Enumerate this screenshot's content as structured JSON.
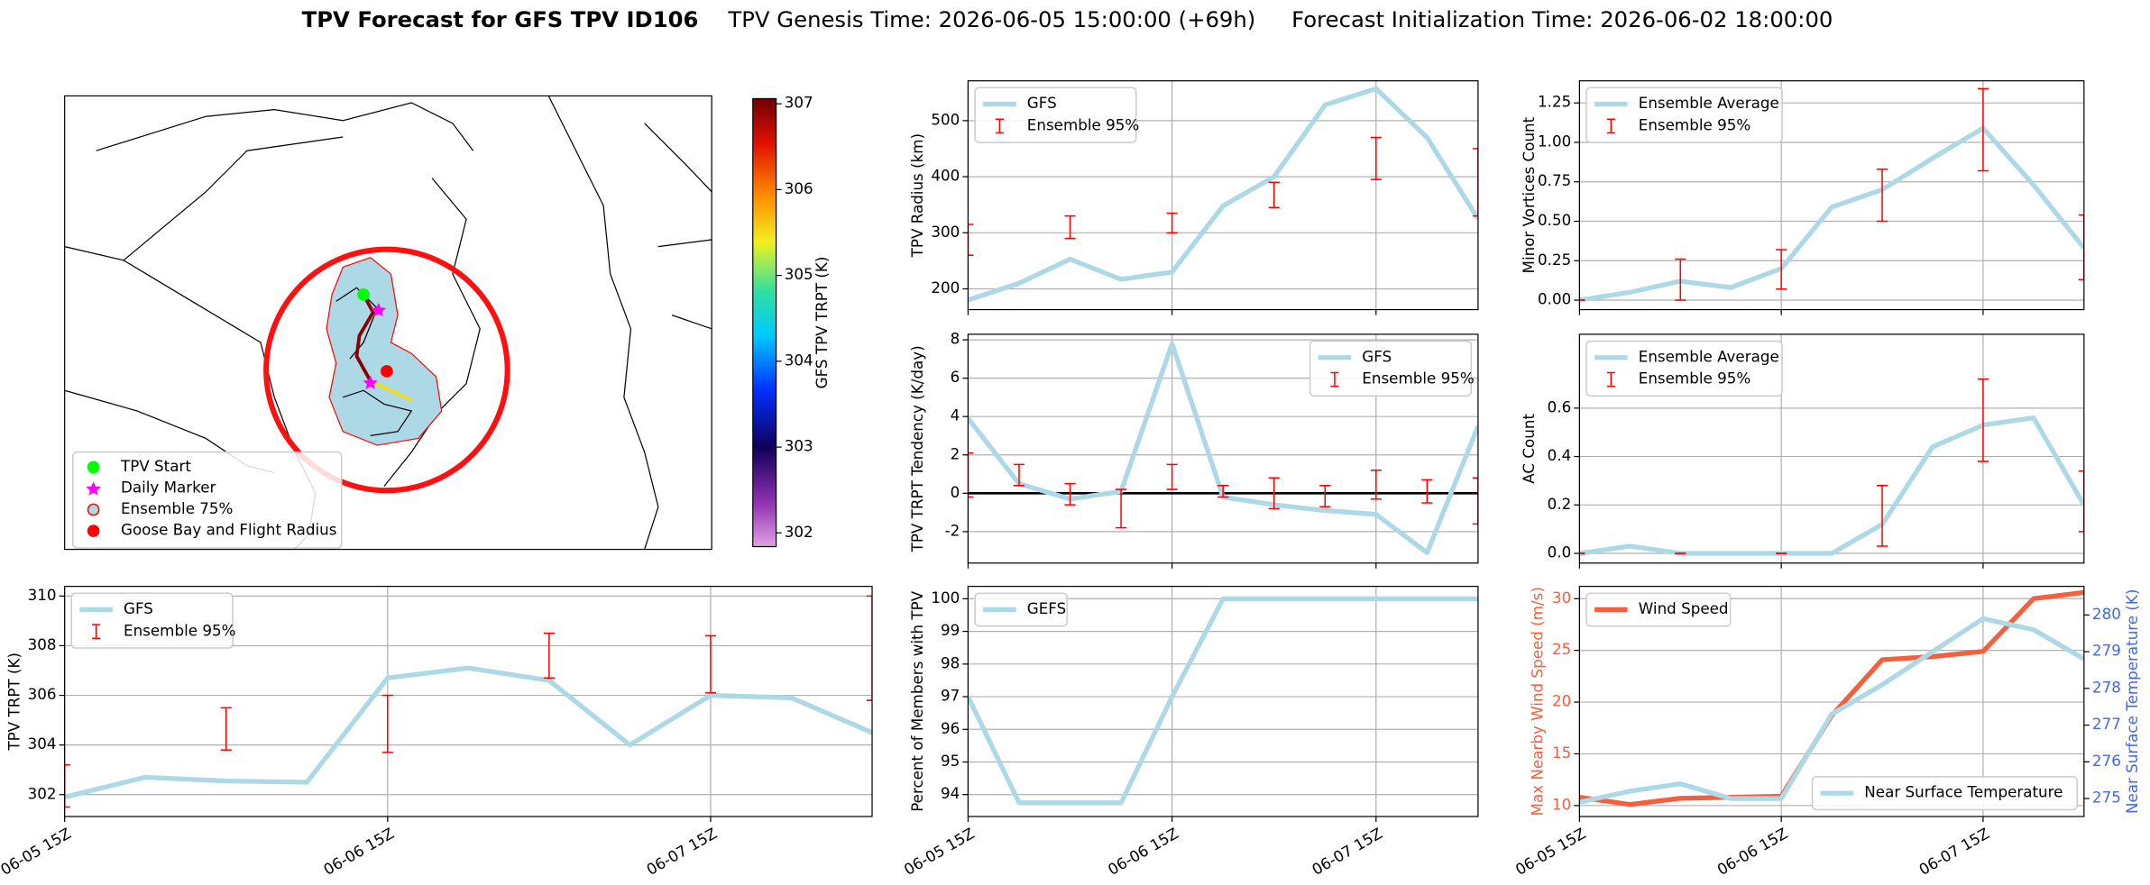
{
  "title": "TPV Forecast for GFS TPV ID106",
  "genesis": "TPV Genesis Time: 2026-06-05 15:00:00 (+69h)",
  "initialization": "Forecast Initialization Time: 2026-06-02 18:00:00",
  "chart_data": [
    {
      "type": "map",
      "legend": [
        {
          "label": "TPV Start",
          "color": "#00ff00",
          "marker": "circle"
        },
        {
          "label": "Daily Marker",
          "color": "#ff00ff",
          "marker": "star"
        },
        {
          "label": "Ensemble 75%",
          "color": "#add8e6",
          "marker": "ring"
        },
        {
          "label": "Goose Bay and Flight Radius",
          "color": "#ff0000",
          "marker": "circle"
        }
      ],
      "colorbar": {
        "label": "GFS TPV TRPT (K)",
        "ylim": [
          301.84,
          307.06
        ],
        "yticks": [
          302,
          303,
          304,
          305,
          306,
          307
        ]
      }
    },
    {
      "type": "line",
      "ylabel": "TPV Radius (km)",
      "x": [
        0,
        6,
        12,
        18,
        24,
        30,
        36,
        42,
        48,
        54,
        60
      ],
      "xlim": [
        0,
        60
      ],
      "xticks": [
        {
          "value": 0,
          "label": "06-05 15Z"
        },
        {
          "value": 24,
          "label": "06-06 15Z"
        },
        {
          "value": 48,
          "label": "06-07 15Z"
        }
      ],
      "ylim": [
        163,
        571
      ],
      "yticks": [
        200,
        300,
        400,
        500
      ],
      "grid": true,
      "legend_loc": "upper left",
      "series": [
        {
          "name": "GFS",
          "color": "#add8e6",
          "values": [
            180,
            210,
            253,
            217,
            230,
            348,
            400,
            528,
            557,
            470,
            325
          ]
        }
      ],
      "errorbars": {
        "name": "Ensemble 95%",
        "color": "#ff0000",
        "x": [
          0,
          12,
          24,
          36,
          48,
          60
        ],
        "low": [
          260,
          290,
          300,
          345,
          395,
          330
        ],
        "high": [
          315,
          330,
          335,
          390,
          470,
          450
        ]
      }
    },
    {
      "type": "line",
      "ylabel": "Minor Vortices Count",
      "x": [
        0,
        6,
        12,
        18,
        24,
        30,
        36,
        42,
        48,
        54,
        60
      ],
      "xlim": [
        0,
        60
      ],
      "xticks": [
        {
          "value": 0,
          "label": "06-05 15Z"
        },
        {
          "value": 24,
          "label": "06-06 15Z"
        },
        {
          "value": 48,
          "label": "06-07 15Z"
        }
      ],
      "ylim": [
        -0.06,
        1.39
      ],
      "yticks": [
        {
          "value": 0,
          "label": "0.00"
        },
        {
          "value": 0.25,
          "label": "0.25"
        },
        {
          "value": 0.5,
          "label": "0.50"
        },
        {
          "value": 0.75,
          "label": "0.75"
        },
        {
          "value": 1,
          "label": "1.00"
        },
        {
          "value": 1.25,
          "label": "1.25"
        }
      ],
      "grid": true,
      "legend_loc": "upper left",
      "series": [
        {
          "name": "Ensemble Average",
          "color": "#add8e6",
          "values": [
            0,
            0.05,
            0.12,
            0.08,
            0.2,
            0.59,
            0.7,
            0.9,
            1.09,
            0.73,
            0.33
          ]
        }
      ],
      "errorbars": {
        "name": "Ensemble 95%",
        "color": "#ff0000",
        "x": [
          0,
          12,
          24,
          36,
          48,
          60
        ],
        "low": [
          0,
          0,
          0.07,
          0.5,
          0.82,
          0.13
        ],
        "high": [
          0,
          0.26,
          0.32,
          0.83,
          1.34,
          0.54
        ]
      }
    },
    {
      "type": "line",
      "ylabel": "TPV TRPT Tendency (K/day)",
      "x": [
        0,
        6,
        12,
        18,
        24,
        30,
        36,
        42,
        48,
        54,
        60
      ],
      "xlim": [
        0,
        60
      ],
      "xticks": [
        {
          "value": 0,
          "label": "06-05 15Z"
        },
        {
          "value": 24,
          "label": "06-06 15Z"
        },
        {
          "value": 48,
          "label": "06-07 15Z"
        }
      ],
      "ylim": [
        -3.64,
        8.29
      ],
      "yticks": [
        -2,
        0,
        2,
        4,
        6,
        8
      ],
      "grid": true,
      "legend_loc": "upper right",
      "reference_line": 0,
      "series": [
        {
          "name": "GFS",
          "color": "#add8e6",
          "values": [
            3.9,
            0.5,
            -0.3,
            0.1,
            7.8,
            -0.2,
            -0.6,
            -0.9,
            -1.1,
            -3.1,
            3.5
          ]
        }
      ],
      "errorbars": {
        "name": "Ensemble 95%",
        "color": "#ff0000",
        "x": [
          0,
          6,
          12,
          18,
          24,
          30,
          36,
          42,
          48,
          54,
          60
        ],
        "low": [
          -0.2,
          0.4,
          -0.6,
          -1.8,
          0.2,
          -0.2,
          -0.8,
          -0.7,
          -0.3,
          -0.5,
          -1.6
        ],
        "high": [
          2.1,
          1.5,
          0.5,
          0.2,
          1.5,
          0.4,
          0.8,
          0.4,
          1.2,
          0.7,
          0.8
        ]
      }
    },
    {
      "type": "line",
      "ylabel": "AC Count",
      "x": [
        0,
        6,
        12,
        18,
        24,
        30,
        36,
        42,
        48,
        54,
        60
      ],
      "xlim": [
        0,
        60
      ],
      "xticks": [
        {
          "value": 0,
          "label": "06-05 15Z"
        },
        {
          "value": 24,
          "label": "06-06 15Z"
        },
        {
          "value": 48,
          "label": "06-07 15Z"
        }
      ],
      "ylim": [
        -0.04,
        0.905
      ],
      "yticks": [
        {
          "value": 0,
          "label": "0.0"
        },
        {
          "value": 0.2,
          "label": "0.2"
        },
        {
          "value": 0.4,
          "label": "0.4"
        },
        {
          "value": 0.6,
          "label": "0.6"
        }
      ],
      "grid": true,
      "legend_loc": "upper left",
      "series": [
        {
          "name": "Ensemble Average",
          "color": "#add8e6",
          "values": [
            0,
            0.03,
            0,
            0,
            0,
            0,
            0.12,
            0.44,
            0.53,
            0.56,
            0.2
          ]
        }
      ],
      "errorbars": {
        "name": "Ensemble 95%",
        "color": "#ff0000",
        "x": [
          0,
          12,
          24,
          36,
          48,
          60
        ],
        "low": [
          0,
          0,
          0,
          0.03,
          0.38,
          0.09
        ],
        "high": [
          0,
          0,
          0,
          0.28,
          0.72,
          0.34
        ]
      }
    },
    {
      "type": "line",
      "ylabel": "TPV TRPT (K)",
      "x": [
        0,
        6,
        12,
        18,
        24,
        30,
        36,
        42,
        48,
        54,
        60
      ],
      "xlim": [
        0,
        60
      ],
      "xticks": [
        {
          "value": 0,
          "label": "06-05 15Z"
        },
        {
          "value": 24,
          "label": "06-06 15Z"
        },
        {
          "value": 48,
          "label": "06-07 15Z"
        }
      ],
      "ylim": [
        301.12,
        310.39
      ],
      "yticks": [
        302,
        304,
        306,
        308,
        310
      ],
      "grid": true,
      "legend_loc": "upper left",
      "series": [
        {
          "name": "GFS",
          "color": "#add8e6",
          "values": [
            301.9,
            302.7,
            302.55,
            302.5,
            306.7,
            307.1,
            306.6,
            304.0,
            306.0,
            305.9,
            304.5
          ]
        }
      ],
      "errorbars": {
        "name": "Ensemble 95%",
        "color": "#ff0000",
        "x": [
          0,
          12,
          24,
          36,
          48,
          60
        ],
        "low": [
          301.5,
          303.8,
          303.7,
          306.7,
          306.1,
          305.8
        ],
        "high": [
          303.2,
          305.5,
          306.0,
          308.5,
          308.4,
          310
        ]
      }
    },
    {
      "type": "line",
      "ylabel": "Percent of Members with TPV",
      "x": [
        0,
        6,
        12,
        18,
        24,
        30,
        36,
        42,
        48,
        54,
        60
      ],
      "xlim": [
        0,
        60
      ],
      "xticks": [
        {
          "value": 0,
          "label": "06-05 15Z"
        },
        {
          "value": 24,
          "label": "06-06 15Z"
        },
        {
          "value": 48,
          "label": "06-07 15Z"
        }
      ],
      "ylim": [
        93.33,
        100.38
      ],
      "yticks": [
        94,
        95,
        96,
        97,
        98,
        99,
        100
      ],
      "grid": true,
      "legend_loc": "upper left",
      "series": [
        {
          "name": "GEFS",
          "color": "#add8e6",
          "values": [
            97,
            93.75,
            93.75,
            93.75,
            97,
            100,
            100,
            100,
            100,
            100,
            100
          ]
        }
      ]
    },
    {
      "type": "line",
      "ylabel": "Max Nearby Wind Speed (m/s)",
      "ylabel_color": "#f4603e",
      "y2label": "Near Surface Temperature (K)",
      "y2label_color": "#4169e1",
      "x": [
        0,
        6,
        12,
        18,
        24,
        30,
        36,
        42,
        48,
        54,
        60
      ],
      "xlim": [
        0,
        60
      ],
      "xticks": [
        {
          "value": 0,
          "label": "06-05 15Z"
        },
        {
          "value": 24,
          "label": "06-06 15Z"
        },
        {
          "value": 48,
          "label": "06-07 15Z"
        }
      ],
      "ylim": [
        8.94,
        31.19
      ],
      "yticks": [
        10,
        15,
        20,
        25,
        30
      ],
      "y2lim": [
        274.51,
        280.78
      ],
      "y2ticks": [
        275,
        276,
        277,
        278,
        279,
        280
      ],
      "grid": true,
      "legend_loc": "upper left",
      "y2_legend_loc": "lower right",
      "series": [
        {
          "name": "Wind Speed",
          "color": "#f4603e",
          "values": [
            10.8,
            10.1,
            10.7,
            10.8,
            10.9,
            18.7,
            24.1,
            24.4,
            24.9,
            30,
            30.6
          ]
        },
        {
          "name": "Near Surface Temperature",
          "color": "#add8e6",
          "axis": "y2",
          "values": [
            274.9,
            275.2,
            275.4,
            275.0,
            275.0,
            277.3,
            278.1,
            279.0,
            279.9,
            279.6,
            278.8
          ]
        }
      ]
    }
  ]
}
